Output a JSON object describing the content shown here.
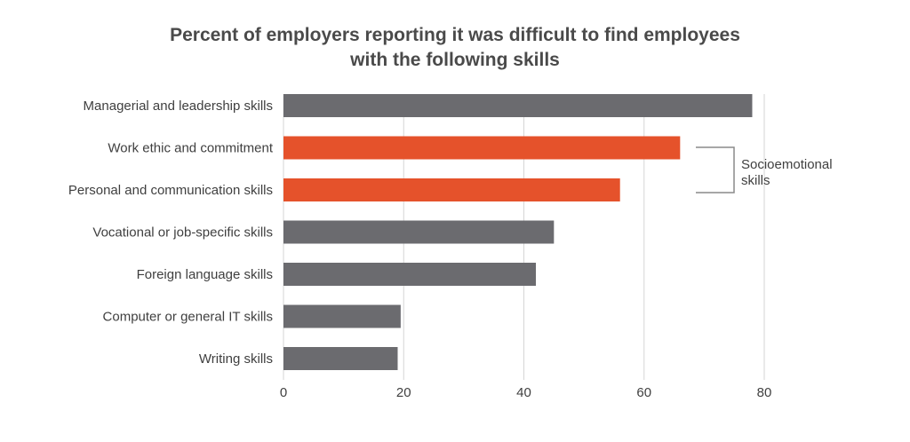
{
  "chart_data": {
    "type": "bar",
    "orientation": "horizontal",
    "title_line1": "Percent of employers reporting it was difficult to find employees",
    "title_line2": "with the following skills",
    "categories": [
      "Managerial and leadership skills",
      "Work ethic and commitment",
      "Personal and communication skills",
      "Vocational or job-specific skills",
      "Foreign language skills",
      "Computer or general IT skills",
      "Writing skills"
    ],
    "values": [
      78,
      66,
      56,
      45,
      42,
      19.5,
      19
    ],
    "highlight": [
      false,
      true,
      true,
      false,
      false,
      false,
      false
    ],
    "xlim": [
      0,
      80
    ],
    "xticks": [
      "0",
      "20",
      "40",
      "60",
      "80"
    ],
    "grid": "vertical",
    "colors": {
      "default": "#6b6b6f",
      "highlight": "#e5522b",
      "grid": "#d6d6d6",
      "bracket": "#8a8a8a"
    },
    "annotation": {
      "line1": "Socioemotional",
      "line2": "skills"
    }
  }
}
